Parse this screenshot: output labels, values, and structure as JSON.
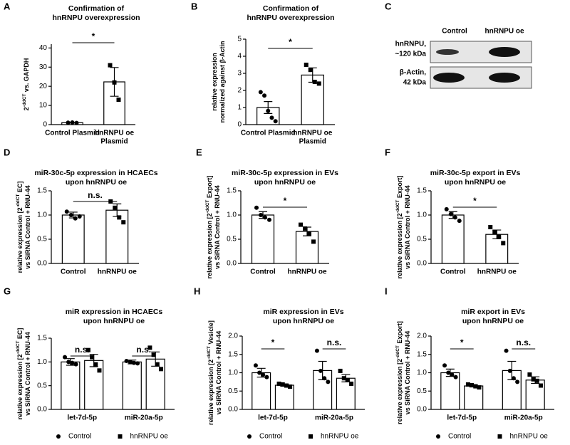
{
  "chart_data": [
    {
      "type": "bar",
      "panel": "A",
      "title": [
        "Confirmation of",
        "hnRNPU overexpression"
      ],
      "ylabel": [
        [
          "2",
          "-ddCT",
          " vs. GAPDH"
        ]
      ],
      "categories": [
        [
          "Control Plasmid"
        ],
        [
          "hnRNPU oe",
          "Plasmid"
        ]
      ],
      "values": [
        1.0,
        22.3
      ],
      "errors": [
        0.1,
        7.5
      ],
      "points": [
        [
          1.0,
          1.1,
          0.9
        ],
        [
          31,
          22,
          13
        ]
      ],
      "markers": [
        "circle",
        "square"
      ],
      "color": "#000000",
      "ylim": [
        0,
        42
      ],
      "yticks": [
        0,
        10,
        20,
        30,
        40
      ],
      "significance": [
        "*"
      ]
    },
    {
      "type": "bar",
      "panel": "B",
      "title": [
        "Confirmation of",
        "hnRNPU overexpression"
      ],
      "ylabel": [
        [
          "relative expression"
        ],
        [
          "normalized against β-Actin"
        ]
      ],
      "categories": [
        [
          "Control Plasmid"
        ],
        [
          "hnRNPU oe",
          "Plasmid"
        ]
      ],
      "values": [
        1.0,
        2.9
      ],
      "errors": [
        0.35,
        0.42
      ],
      "points": [
        [
          1.9,
          1.7,
          0.8,
          0.4,
          0.2
        ],
        [
          3.5,
          3.2,
          2.5,
          2.4
        ]
      ],
      "markers": [
        "circle",
        "square"
      ],
      "color": "#000000",
      "ylim": [
        0,
        5
      ],
      "yticks": [
        0,
        1,
        2,
        3,
        4,
        5
      ],
      "significance": [
        "*"
      ]
    },
    {
      "type": "bar",
      "panel": "D",
      "title": [
        "miR-30c-5p expression in HCAECs",
        "upon hnRNPU oe"
      ],
      "ylabel": [
        [
          "relative expression [2",
          "-ddCT",
          " EC]"
        ],
        [
          "vs SiRNA Control + RNU-44"
        ]
      ],
      "categories": [
        [
          "Control"
        ],
        [
          "hnRNPU oe"
        ]
      ],
      "values": [
        1.0,
        1.1
      ],
      "errors": [
        0.06,
        0.13
      ],
      "points": [
        [
          1.07,
          1.0,
          0.93,
          0.97
        ],
        [
          1.28,
          1.15,
          0.95,
          0.85
        ]
      ],
      "markers": [
        "circle",
        "square"
      ],
      "color": "#000000",
      "ylim": [
        0,
        1.5
      ],
      "yticks": [
        {
          "value": 0,
          "label": "0.0"
        },
        0.5,
        {
          "value": 1,
          "label": "1.0"
        },
        1.5
      ],
      "significance": [
        "n.s."
      ]
    },
    {
      "type": "bar",
      "panel": "E",
      "title": [
        "miR-30c-5p expression in EVs",
        "upon hnRNPU oe"
      ],
      "ylabel": [
        [
          "relative expression [2",
          "-ddCT",
          " Export]"
        ],
        [
          "vs SiRNA Control + RNU-44"
        ]
      ],
      "categories": [
        [
          "Control"
        ],
        [
          "hnRNPU oe"
        ]
      ],
      "values": [
        1.0,
        0.66
      ],
      "errors": [
        0.07,
        0.09
      ],
      "points": [
        [
          1.15,
          1.0,
          0.95,
          0.9
        ],
        [
          0.8,
          0.72,
          0.62,
          0.45
        ]
      ],
      "markers": [
        "circle",
        "square"
      ],
      "color": "#000000",
      "ylim": [
        0,
        1.5
      ],
      "yticks": [
        {
          "value": 0,
          "label": "0.0"
        },
        0.5,
        {
          "value": 1,
          "label": "1.0"
        },
        1.5
      ],
      "significance": [
        "*"
      ]
    },
    {
      "type": "bar",
      "panel": "F",
      "title": [
        "miR-30c-5p export in EVs",
        "upon hnRNPU oe"
      ],
      "ylabel": [
        [
          "relative expression [2",
          "-ddCT",
          " Export]"
        ],
        [
          "vs SiRNA Control + RNU-44"
        ]
      ],
      "categories": [
        [
          "Control"
        ],
        [
          "hnRNPU oe"
        ]
      ],
      "values": [
        1.0,
        0.6
      ],
      "errors": [
        0.07,
        0.09
      ],
      "points": [
        [
          1.12,
          1.02,
          0.95,
          0.88
        ],
        [
          0.75,
          0.65,
          0.55,
          0.42
        ]
      ],
      "markers": [
        "circle",
        "square"
      ],
      "color": "#000000",
      "ylim": [
        0,
        1.5
      ],
      "yticks": [
        {
          "value": 0,
          "label": "0.0"
        },
        0.5,
        {
          "value": 1,
          "label": "1.0"
        },
        1.5
      ],
      "significance": [
        "*"
      ]
    },
    {
      "type": "grouped_bar",
      "panel": "G",
      "title": [
        "miR expression in HCAECs",
        "upon hnRNPU oe"
      ],
      "ylabel": [
        [
          "relative expression [2",
          "-ddCT",
          " EC]"
        ],
        [
          "vs SiRNA Control + RNU-44"
        ]
      ],
      "categories": [
        [
          "let-7d-5p"
        ],
        [
          "miR-20a-5p"
        ]
      ],
      "series": [
        {
          "name": "Control",
          "marker": "circle",
          "color": "#000000",
          "values": [
            1.0,
            1.0
          ],
          "errors": [
            0.07,
            0.04
          ],
          "points": [
            [
              1.1,
              1.0,
              0.98,
              0.95
            ],
            [
              1.02,
              1.0,
              0.98,
              0.97
            ]
          ]
        },
        {
          "name": "hnRNPU oe",
          "marker": "square",
          "color": "#000000",
          "values": [
            1.03,
            1.06
          ],
          "errors": [
            0.13,
            0.15
          ],
          "points": [
            [
              1.25,
              1.1,
              0.95,
              0.82
            ],
            [
              1.3,
              1.15,
              0.95,
              0.85
            ]
          ]
        }
      ],
      "ylim": [
        0,
        1.5
      ],
      "yticks": [
        {
          "value": 0,
          "label": "0.0"
        },
        0.5,
        {
          "value": 1,
          "label": "1.0"
        },
        1.5
      ],
      "significance": [
        "n.s.",
        "n.s."
      ]
    },
    {
      "type": "grouped_bar",
      "panel": "H",
      "title": [
        "miR expression in EVs",
        "upon hnRNPU oe"
      ],
      "ylabel": [
        [
          "relative expression [2",
          "-ddCT",
          " Vesicle]"
        ],
        [
          "vs SiRNA Control + RNU-44"
        ]
      ],
      "categories": [
        [
          "let-7d-5p"
        ],
        [
          "miR-20a-5p"
        ]
      ],
      "series": [
        {
          "name": "Control",
          "marker": "circle",
          "color": "#000000",
          "values": [
            1.0,
            1.06
          ],
          "errors": [
            0.12,
            0.25
          ],
          "points": [
            [
              1.2,
              1.0,
              0.95,
              0.88
            ],
            [
              1.6,
              1.05,
              0.85,
              0.75
            ]
          ]
        },
        {
          "name": "hnRNPU oe",
          "marker": "square",
          "color": "#000000",
          "values": [
            0.66,
            0.85
          ],
          "errors": [
            0.03,
            0.1
          ],
          "points": [
            [
              0.7,
              0.68,
              0.65,
              0.62
            ],
            [
              1.05,
              0.85,
              0.8,
              0.7
            ]
          ]
        }
      ],
      "ylim": [
        0,
        2.0
      ],
      "yticks": [
        {
          "value": 0,
          "label": "0.0"
        },
        0.5,
        {
          "value": 1,
          "label": "1.0"
        },
        1.5,
        {
          "value": 2,
          "label": "2.0"
        }
      ],
      "significance": [
        "*",
        "n.s."
      ]
    },
    {
      "type": "grouped_bar",
      "panel": "I",
      "title": [
        "miR export in EVs",
        "upon hnRNPU oe"
      ],
      "ylabel": [
        [
          "relative expression [2",
          "-ddCT",
          " Export]"
        ],
        [
          "vs SiRNA Control + RNU-44"
        ]
      ],
      "categories": [
        [
          "let-7d-5p"
        ],
        [
          "miR-20a-5p"
        ]
      ],
      "series": [
        {
          "name": "Control",
          "marker": "circle",
          "color": "#000000",
          "values": [
            1.0,
            1.06
          ],
          "errors": [
            0.1,
            0.25
          ],
          "points": [
            [
              1.2,
              1.0,
              0.95,
              0.88
            ],
            [
              1.6,
              1.05,
              0.85,
              0.75
            ]
          ]
        },
        {
          "name": "hnRNPU oe",
          "marker": "square",
          "color": "#000000",
          "values": [
            0.64,
            0.8
          ],
          "errors": [
            0.03,
            0.09
          ],
          "points": [
            [
              0.68,
              0.66,
              0.63,
              0.6
            ],
            [
              0.95,
              0.82,
              0.78,
              0.65
            ]
          ]
        }
      ],
      "ylim": [
        0,
        2.0
      ],
      "yticks": [
        {
          "value": 0,
          "label": "0.0"
        },
        0.5,
        {
          "value": 1,
          "label": "1.0"
        },
        1.5,
        {
          "value": 2,
          "label": "2.0"
        }
      ],
      "significance": [
        "*",
        "n.s."
      ]
    }
  ],
  "blot": {
    "panel": "C",
    "lanes": [
      "Control",
      "hnRNPU oe"
    ],
    "bands": [
      [
        "hnRNPU,",
        "~120 kDa"
      ],
      [
        "β-Actin,",
        "42 kDa"
      ]
    ]
  }
}
